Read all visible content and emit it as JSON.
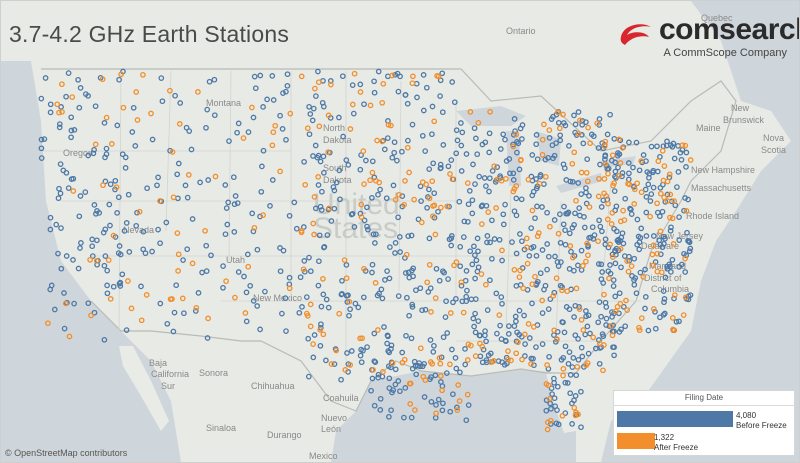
{
  "title": "3.7-4.2 GHz Earth Stations",
  "logo": {
    "name": "comsearch",
    "tm": "™",
    "tagline": "A CommScope Company",
    "color": "#d9262e"
  },
  "attribution": "© OpenStreetMap contributors",
  "place_labels": [
    {
      "text": "Ontario"
    },
    {
      "text": "Quebec"
    },
    {
      "text": "Montana"
    },
    {
      "text": "North"
    },
    {
      "text": "Dakota"
    },
    {
      "text": "South"
    },
    {
      "text": "Dakota"
    },
    {
      "text": "Oregon"
    },
    {
      "text": "Nevada"
    },
    {
      "text": "Utah"
    },
    {
      "text": "New Mexico"
    },
    {
      "text": "Sonora"
    },
    {
      "text": "Chihuahua"
    },
    {
      "text": "Baja"
    },
    {
      "text": "California"
    },
    {
      "text": "Sur"
    },
    {
      "text": "Coahuila"
    },
    {
      "text": "Durango"
    },
    {
      "text": "Nuevo"
    },
    {
      "text": "León"
    },
    {
      "text": "Sinaloa"
    },
    {
      "text": "Mexico"
    },
    {
      "text": "New"
    },
    {
      "text": "Brunswick"
    },
    {
      "text": "Maine"
    },
    {
      "text": "Nova"
    },
    {
      "text": "Scotia"
    },
    {
      "text": "New Hampshire"
    },
    {
      "text": "Massachusetts"
    },
    {
      "text": "Rhode Island"
    },
    {
      "text": "New Jersey"
    },
    {
      "text": "Delaware"
    },
    {
      "text": "Maryland"
    },
    {
      "text": "District of"
    },
    {
      "text": "Columbia"
    },
    {
      "text": "United"
    },
    {
      "text": "States"
    }
  ],
  "legend": {
    "title": "Filing Date",
    "items": [
      {
        "label": "Before Freeze",
        "value": 4080,
        "value_text": "4,080",
        "color": "#4e79a7"
      },
      {
        "label": "After Freeze",
        "value": 1322,
        "value_text": "1,322",
        "color": "#f28e2b"
      }
    ]
  },
  "colors": {
    "before": "#4e79a7",
    "after": "#f28e2b",
    "land": "#e9ebe6",
    "water": "#cfd6db"
  }
}
